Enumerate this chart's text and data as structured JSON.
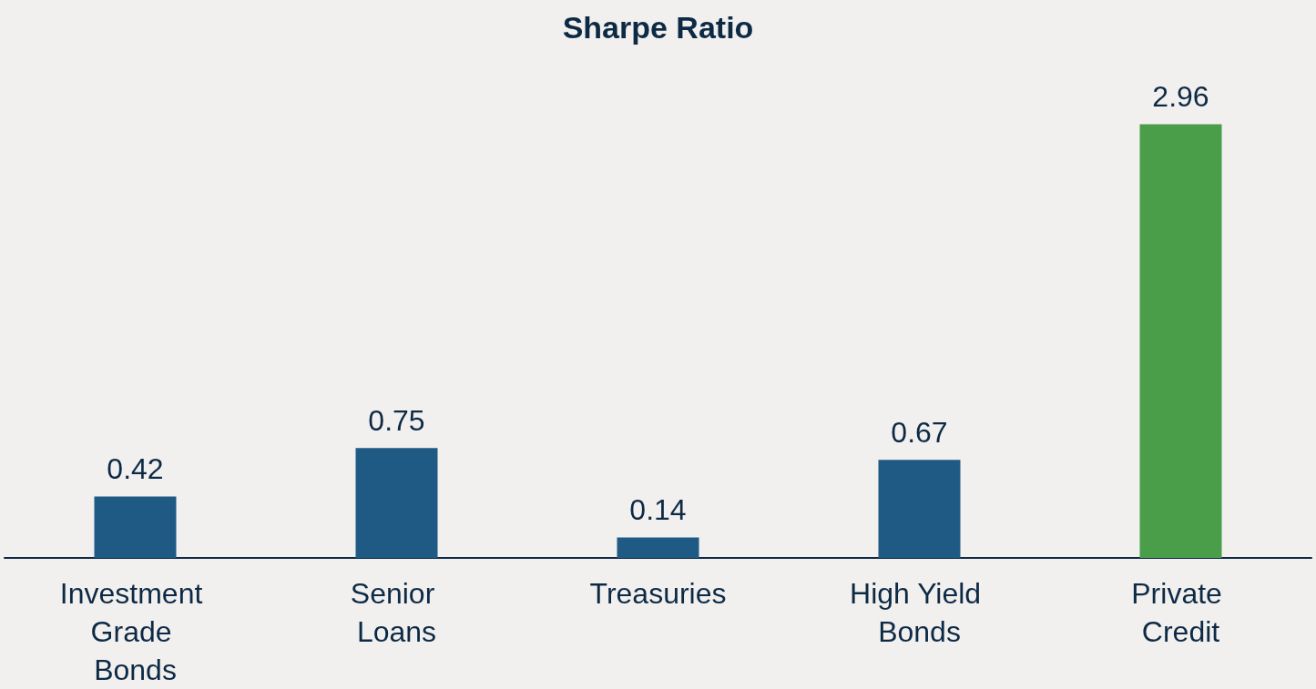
{
  "chart_data": {
    "type": "bar",
    "title": "Sharpe Ratio",
    "categories": [
      "Investment Grade Bonds",
      "Senior Loans",
      "Treasuries",
      "High Yield Bonds",
      "Private Credit"
    ],
    "values": [
      0.42,
      0.75,
      0.14,
      0.67,
      2.96
    ],
    "colors": [
      "#1f5a85",
      "#1f5a85",
      "#1f5a85",
      "#1f5a85",
      "#4a9e4a"
    ],
    "data_labels": true
  }
}
